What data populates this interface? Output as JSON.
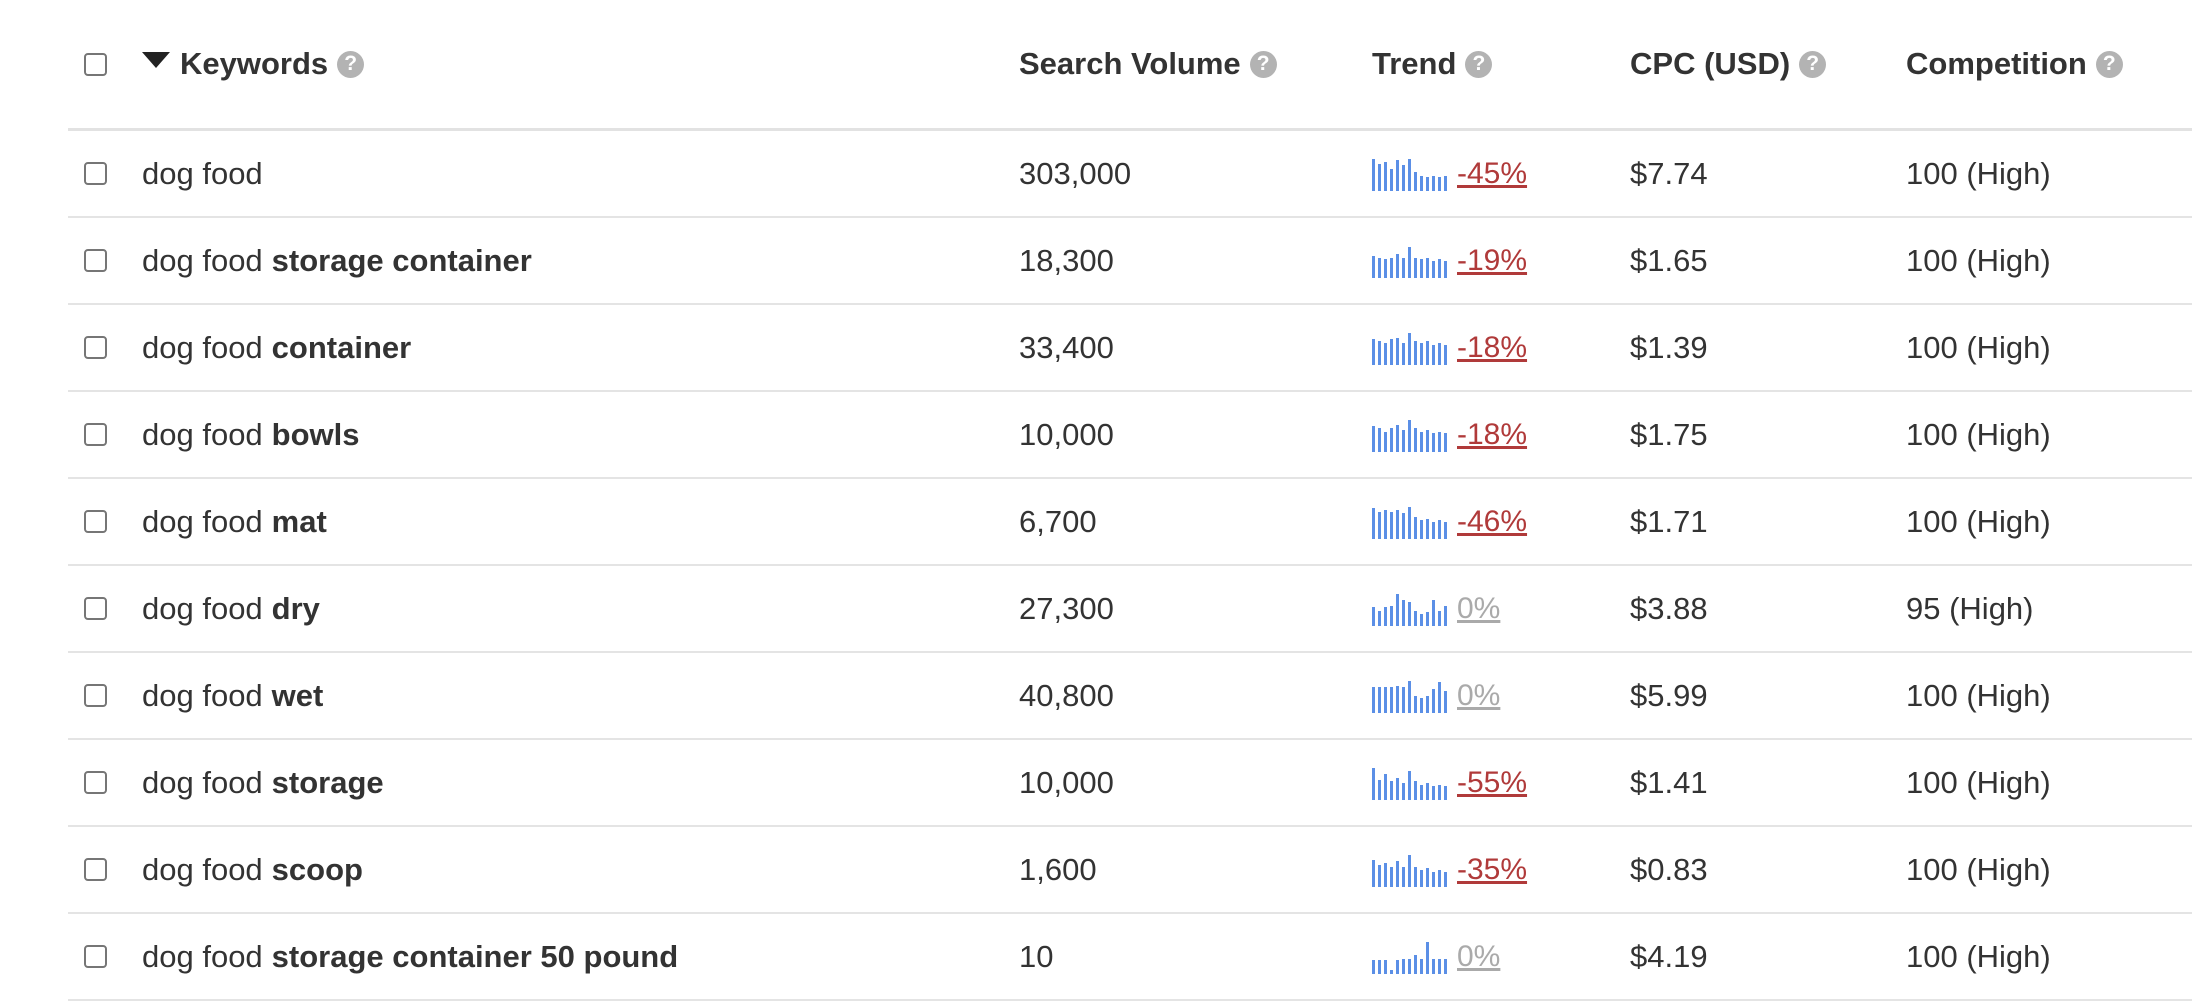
{
  "header": {
    "keywords": "Keywords",
    "search_volume": "Search Volume",
    "trend": "Trend",
    "cpc": "CPC (USD)",
    "competition": "Competition",
    "help_glyph": "?"
  },
  "colors": {
    "sparkline": "#5b8fe6",
    "trend_negative": "#b03a3a",
    "trend_zero": "#aaaaaa"
  },
  "rows": [
    {
      "kw_base": "dog food",
      "kw_bold": "",
      "volume": "303,000",
      "trend": "-45%",
      "trend_type": "neg",
      "spark": [
        0.95,
        0.8,
        0.85,
        0.65,
        0.9,
        0.75,
        0.95,
        0.55,
        0.45,
        0.4,
        0.45,
        0.4,
        0.45
      ],
      "cpc": "$7.74",
      "competition": "100 (High)"
    },
    {
      "kw_base": "dog food",
      "kw_bold": "storage container",
      "volume": "18,300",
      "trend": "-19%",
      "trend_type": "neg",
      "spark": [
        0.65,
        0.6,
        0.55,
        0.6,
        0.7,
        0.6,
        0.9,
        0.6,
        0.55,
        0.6,
        0.5,
        0.55,
        0.5
      ],
      "cpc": "$1.65",
      "competition": "100 (High)"
    },
    {
      "kw_base": "dog food",
      "kw_bold": "container",
      "volume": "33,400",
      "trend": "-18%",
      "trend_type": "neg",
      "spark": [
        0.75,
        0.7,
        0.65,
        0.75,
        0.8,
        0.65,
        0.95,
        0.7,
        0.65,
        0.7,
        0.6,
        0.65,
        0.6
      ],
      "cpc": "$1.39",
      "competition": "100 (High)"
    },
    {
      "kw_base": "dog food",
      "kw_bold": "bowls",
      "volume": "10,000",
      "trend": "-18%",
      "trend_type": "neg",
      "spark": [
        0.75,
        0.7,
        0.6,
        0.7,
        0.8,
        0.65,
        0.95,
        0.7,
        0.6,
        0.65,
        0.55,
        0.6,
        0.55
      ],
      "cpc": "$1.75",
      "competition": "100 (High)"
    },
    {
      "kw_base": "dog food",
      "kw_bold": "mat",
      "volume": "6,700",
      "trend": "-46%",
      "trend_type": "neg",
      "spark": [
        0.9,
        0.8,
        0.85,
        0.8,
        0.85,
        0.75,
        0.95,
        0.65,
        0.55,
        0.6,
        0.5,
        0.55,
        0.5
      ],
      "cpc": "$1.71",
      "competition": "100 (High)"
    },
    {
      "kw_base": "dog food",
      "kw_bold": "dry",
      "volume": "27,300",
      "trend": "0%",
      "trend_type": "zero",
      "spark": [
        0.55,
        0.45,
        0.55,
        0.6,
        0.95,
        0.75,
        0.7,
        0.45,
        0.35,
        0.4,
        0.75,
        0.45,
        0.6
      ],
      "cpc": "$3.88",
      "competition": "95 (High)"
    },
    {
      "kw_base": "dog food",
      "kw_bold": "wet",
      "volume": "40,800",
      "trend": "0%",
      "trend_type": "zero",
      "spark": [
        0.75,
        0.75,
        0.75,
        0.75,
        0.8,
        0.75,
        0.95,
        0.5,
        0.45,
        0.5,
        0.7,
        0.9,
        0.65
      ],
      "cpc": "$5.99",
      "competition": "100 (High)"
    },
    {
      "kw_base": "dog food",
      "kw_bold": "storage",
      "volume": "10,000",
      "trend": "-55%",
      "trend_type": "neg",
      "spark": [
        0.95,
        0.6,
        0.75,
        0.55,
        0.65,
        0.5,
        0.85,
        0.55,
        0.45,
        0.5,
        0.4,
        0.45,
        0.4
      ],
      "cpc": "$1.41",
      "competition": "100 (High)"
    },
    {
      "kw_base": "dog food",
      "kw_bold": "scoop",
      "volume": "1,600",
      "trend": "-35%",
      "trend_type": "neg",
      "spark": [
        0.8,
        0.65,
        0.7,
        0.6,
        0.75,
        0.6,
        0.95,
        0.6,
        0.5,
        0.55,
        0.45,
        0.5,
        0.45
      ],
      "cpc": "$0.83",
      "competition": "100 (High)"
    },
    {
      "kw_base": "dog food",
      "kw_bold": "storage container 50 pound",
      "volume": "10",
      "trend": "0%",
      "trend_type": "zero",
      "spark": [
        0.4,
        0.4,
        0.4,
        0.12,
        0.4,
        0.45,
        0.45,
        0.55,
        0.45,
        0.95,
        0.45,
        0.45,
        0.45
      ],
      "cpc": "$4.19",
      "competition": "100 (High)"
    }
  ]
}
